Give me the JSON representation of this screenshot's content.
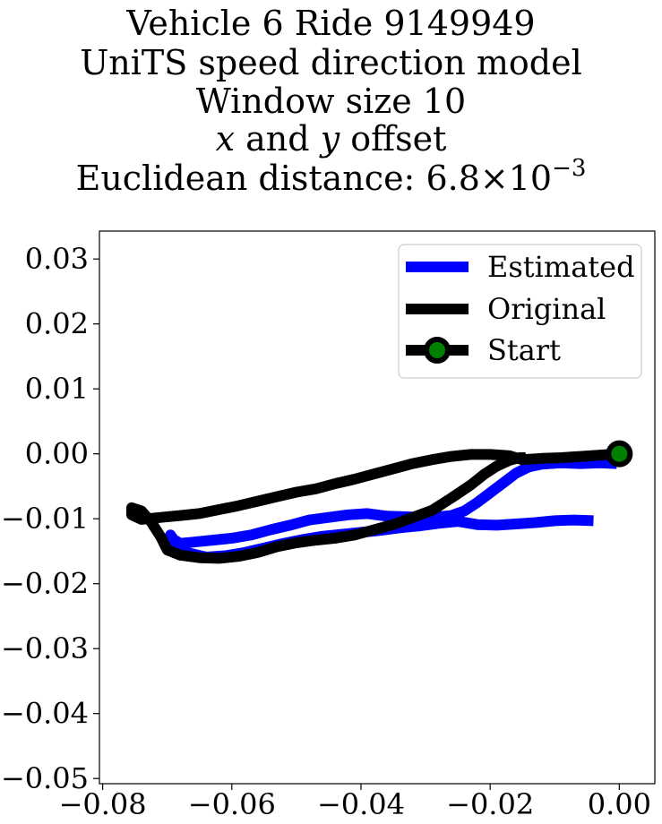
{
  "title": {
    "line1": "Vehicle 6 Ride 9149949",
    "line2": "UniTS speed direction model",
    "line3": "Window size 10",
    "line4_var_x": "x",
    "line4_and": "and",
    "line4_var_y": "y",
    "line4_rest": "offset",
    "line5_prefix": "Euclidean distance: ",
    "line5_mantissa": "6.8",
    "line5_times": "×",
    "line5_base": "10",
    "line5_exp": "−3"
  },
  "chart_data": {
    "type": "line",
    "title": "Vehicle 6 Ride 9149949 UniTS speed direction model Window size 10 x and y offset Euclidean distance: 6.8×10^-3",
    "xlabel": "",
    "ylabel": "",
    "xlim": [
      -0.0805,
      0.0055
    ],
    "ylim": [
      -0.0508,
      0.0343
    ],
    "xticks": [
      -0.08,
      -0.06,
      -0.04,
      -0.02,
      0.0
    ],
    "xtick_labels": [
      "−0.08",
      "−0.06",
      "−0.04",
      "−0.02",
      "0.00"
    ],
    "yticks": [
      0.03,
      0.02,
      0.01,
      0.0,
      -0.01,
      -0.02,
      -0.03,
      -0.04,
      -0.05
    ],
    "ytick_labels": [
      "0.03",
      "0.02",
      "0.01",
      "0.00",
      "−0.01",
      "−0.02",
      "−0.03",
      "−0.04",
      "−0.05"
    ],
    "grid": false,
    "legend_position": "top-right",
    "series": [
      {
        "name": "Estimated",
        "color": "#0000ff",
        "x": [
          -0.0004,
          -0.003,
          -0.006,
          -0.009,
          -0.012,
          -0.014,
          -0.016,
          -0.018,
          -0.02,
          -0.022,
          -0.024,
          -0.026,
          -0.028,
          -0.03,
          -0.033,
          -0.036,
          -0.039,
          -0.042,
          -0.045,
          -0.048,
          -0.051,
          -0.054,
          -0.057,
          -0.06,
          -0.063,
          -0.066,
          -0.068,
          -0.069,
          -0.0695,
          -0.069,
          -0.067,
          -0.064,
          -0.061,
          -0.058,
          -0.055,
          -0.052,
          -0.049,
          -0.046,
          -0.043,
          -0.04,
          -0.037,
          -0.034,
          -0.031,
          -0.028,
          -0.025,
          -0.022,
          -0.019,
          -0.016,
          -0.013,
          -0.01,
          -0.007,
          -0.004
        ],
        "y": [
          -0.0015,
          -0.0014,
          -0.0015,
          -0.0014,
          -0.0016,
          -0.002,
          -0.003,
          -0.0045,
          -0.006,
          -0.0075,
          -0.0088,
          -0.0095,
          -0.0097,
          -0.0098,
          -0.0097,
          -0.0096,
          -0.0092,
          -0.0094,
          -0.0098,
          -0.0102,
          -0.011,
          -0.0117,
          -0.0125,
          -0.013,
          -0.0133,
          -0.0136,
          -0.0138,
          -0.0132,
          -0.0125,
          -0.0138,
          -0.0152,
          -0.0159,
          -0.0157,
          -0.0152,
          -0.0145,
          -0.0138,
          -0.0132,
          -0.0127,
          -0.0124,
          -0.0121,
          -0.0118,
          -0.0114,
          -0.0111,
          -0.0107,
          -0.0104,
          -0.0109,
          -0.011,
          -0.0108,
          -0.0106,
          -0.0103,
          -0.0102,
          -0.0103
        ]
      },
      {
        "name": "Original",
        "color": "#000000",
        "x": [
          0.0,
          -0.003,
          -0.006,
          -0.009,
          -0.012,
          -0.015,
          -0.017,
          -0.02,
          -0.023,
          -0.026,
          -0.029,
          -0.032,
          -0.035,
          -0.038,
          -0.041,
          -0.044,
          -0.047,
          -0.05,
          -0.053,
          -0.056,
          -0.059,
          -0.062,
          -0.065,
          -0.068,
          -0.071,
          -0.074,
          -0.0755,
          -0.0755,
          -0.074,
          -0.0725,
          -0.071,
          -0.07,
          -0.068,
          -0.065,
          -0.062,
          -0.059,
          -0.056,
          -0.053,
          -0.05,
          -0.047,
          -0.044,
          -0.041,
          -0.038,
          -0.035,
          -0.032,
          -0.029,
          -0.026,
          -0.023,
          -0.021,
          -0.019,
          -0.017,
          -0.0155,
          -0.0145
        ],
        "y": [
          0.0,
          -0.0002,
          -0.0004,
          -0.0006,
          -0.0007,
          -0.0009,
          -0.0003,
          -0.0001,
          -0.0001,
          -0.0004,
          -0.0009,
          -0.0015,
          -0.0023,
          -0.0031,
          -0.0039,
          -0.0046,
          -0.0054,
          -0.0059,
          -0.0066,
          -0.0073,
          -0.008,
          -0.0086,
          -0.0092,
          -0.0095,
          -0.0098,
          -0.0101,
          -0.0094,
          -0.0083,
          -0.0088,
          -0.0105,
          -0.0128,
          -0.0148,
          -0.0156,
          -0.016,
          -0.0161,
          -0.0158,
          -0.0152,
          -0.0143,
          -0.0137,
          -0.0133,
          -0.013,
          -0.0125,
          -0.0117,
          -0.0109,
          -0.0098,
          -0.0087,
          -0.0068,
          -0.0048,
          -0.0032,
          -0.0019,
          -0.001,
          -0.0006,
          -0.0006
        ]
      }
    ],
    "start_point": {
      "name": "Start",
      "x": 0.0,
      "y": 0.0,
      "edge_color": "#000000",
      "face_color": "#008000"
    },
    "legend": [
      "Estimated",
      "Original",
      "Start"
    ]
  }
}
